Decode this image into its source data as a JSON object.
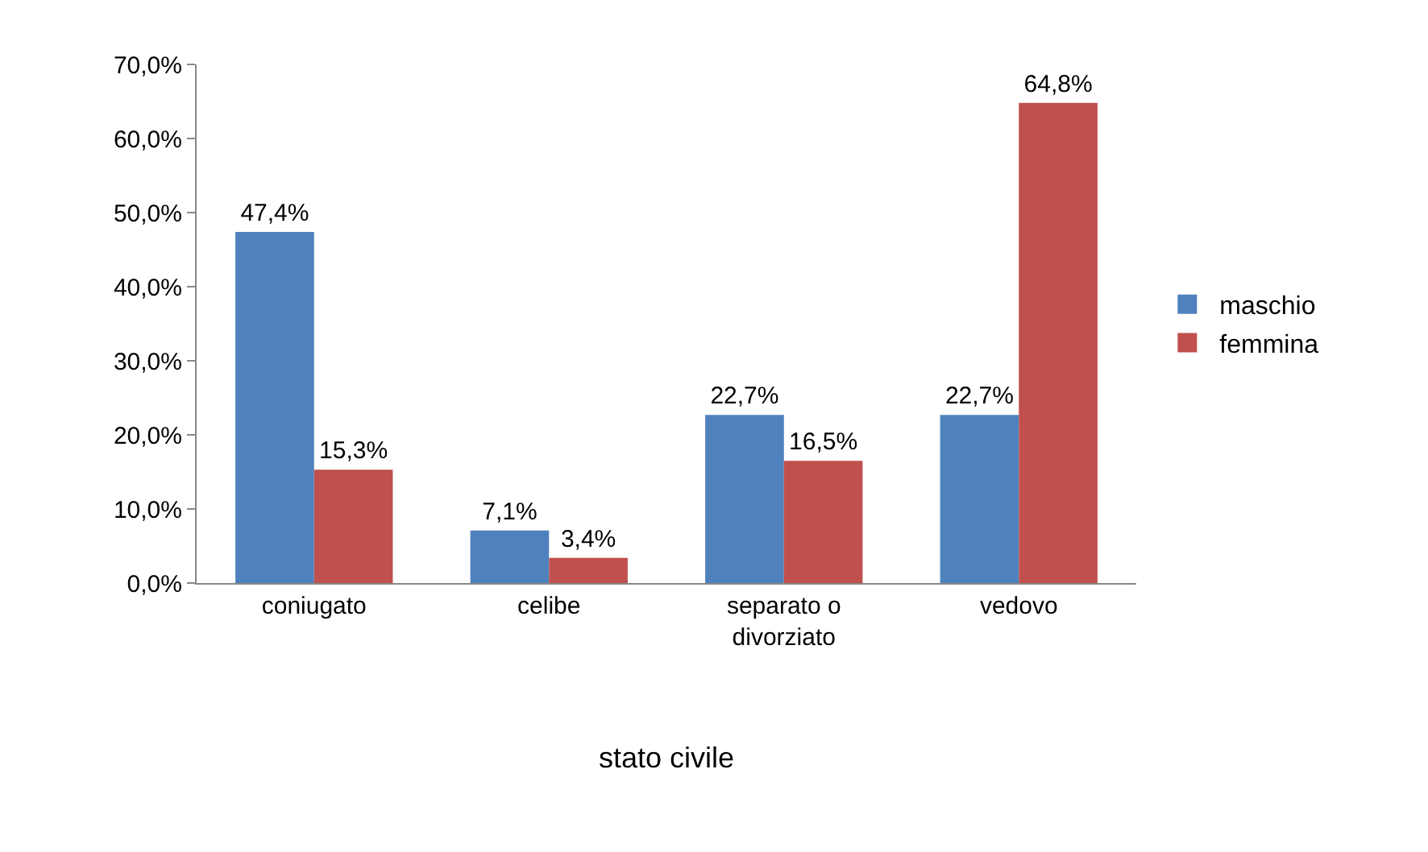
{
  "chart_data": {
    "type": "bar",
    "xlabel": "stato civile",
    "categories": [
      "coniugato",
      "celibe",
      "separato o divorziato",
      "vedovo"
    ],
    "series": [
      {
        "name": "maschio",
        "color": "#4f81bd",
        "values": [
          47.4,
          7.1,
          22.7,
          22.7
        ],
        "value_labels": [
          "47,4%",
          "7,1%",
          "22,7%",
          "22,7%"
        ]
      },
      {
        "name": "femmina",
        "color": "#c0504d",
        "values": [
          15.3,
          3.4,
          16.5,
          64.8
        ],
        "value_labels": [
          "15,3%",
          "3,4%",
          "16,5%",
          "64,8%"
        ]
      }
    ],
    "ylim": [
      0,
      70
    ],
    "yticks": [
      {
        "value": 0,
        "label": "0,0%"
      },
      {
        "value": 10,
        "label": "10,0%"
      },
      {
        "value": 20,
        "label": "20,0%"
      },
      {
        "value": 30,
        "label": "30,0%"
      },
      {
        "value": 40,
        "label": "40,0%"
      },
      {
        "value": 50,
        "label": "50,0%"
      },
      {
        "value": 60,
        "label": "60,0%"
      },
      {
        "value": 70,
        "label": "70,0%"
      }
    ],
    "grid": false,
    "legend": "right"
  }
}
